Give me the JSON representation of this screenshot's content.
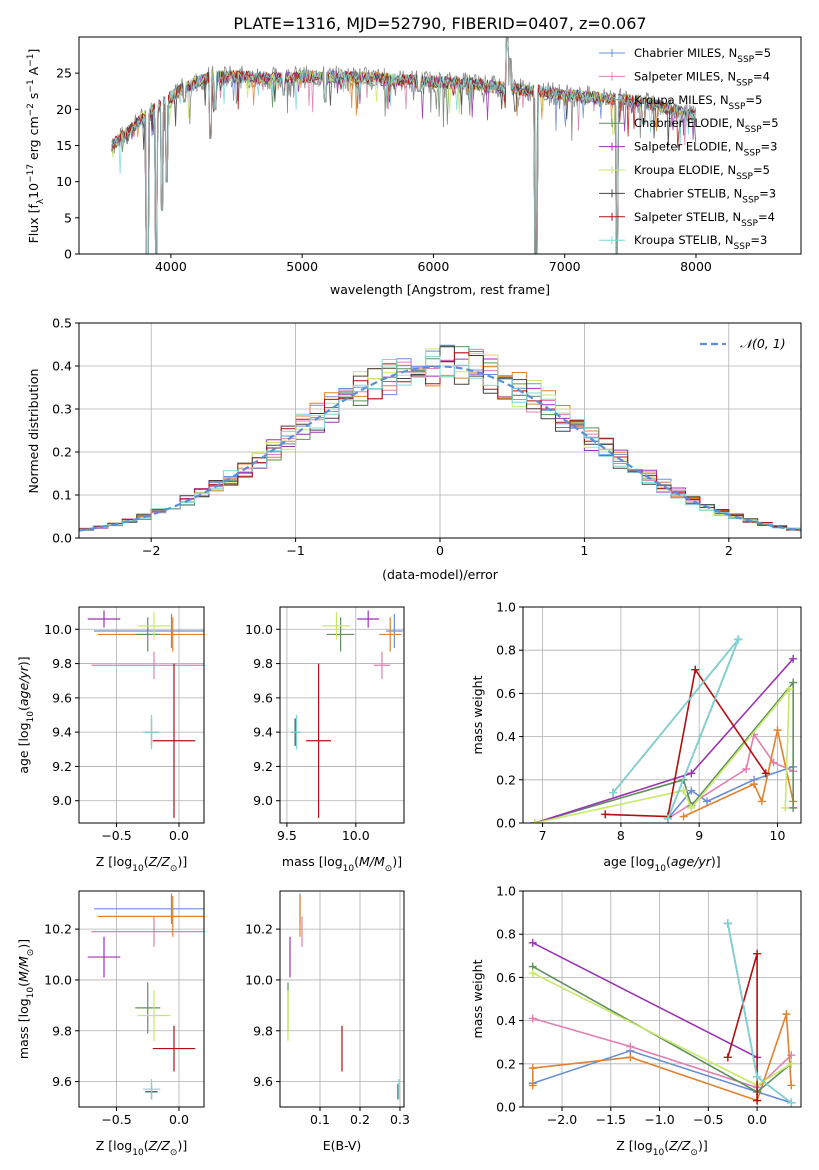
{
  "figure": {
    "title": "PLATE=1316, MJD=52790, FIBERID=0407, z=0.067"
  },
  "colors": {
    "Chabrier MILES": "#6b8fd6",
    "Salpeter MILES": "#e07fb0",
    "Kroupa MILES": "#e0822e",
    "Chabrier ELODIE": "#5f8f5f",
    "Salpeter ELODIE": "#9b33b3",
    "Kroupa ELODIE": "#c9e86a",
    "Chabrier STELIB": "#444444",
    "Salpeter STELIB": "#b01010",
    "Kroupa STELIB": "#7fd6d6",
    "data": "#888888",
    "gaussian": "#5b8fd6"
  },
  "chart_data": [
    {
      "id": "spectrum",
      "type": "line",
      "title": "PLATE=1316, MJD=52790, FIBERID=0407, z=0.067",
      "xlabel": "wavelength [Angstrom, rest frame]",
      "ylabel": "Flux [f_λ 10^-17 erg cm^-2 s^-1 A^-1]",
      "xlim": [
        3300,
        8800
      ],
      "ylim": [
        0,
        30
      ],
      "xticks": [
        4000,
        5000,
        6000,
        7000,
        8000
      ],
      "yticks": [
        0,
        5,
        10,
        15,
        20,
        25
      ],
      "grid": false,
      "legend_position": "top-right",
      "legend": [
        {
          "label": "Chabrier MILES, N",
          "sub": "SSP",
          "tail": "=5",
          "key": "Chabrier MILES"
        },
        {
          "label": "Salpeter MILES, N",
          "sub": "SSP",
          "tail": "=4",
          "key": "Salpeter MILES"
        },
        {
          "label": "Kroupa MILES, N",
          "sub": "SSP",
          "tail": "=5",
          "key": "Kroupa MILES"
        },
        {
          "label": "Chabrier ELODIE, N",
          "sub": "SSP",
          "tail": "=5",
          "key": "Chabrier ELODIE"
        },
        {
          "label": "Salpeter ELODIE, N",
          "sub": "SSP",
          "tail": "=3",
          "key": "Salpeter ELODIE"
        },
        {
          "label": "Kroupa ELODIE, N",
          "sub": "SSP",
          "tail": "=5",
          "key": "Kroupa ELODIE"
        },
        {
          "label": "Chabrier STELIB, N",
          "sub": "SSP",
          "tail": "=3",
          "key": "Chabrier STELIB"
        },
        {
          "label": "Salpeter STELIB, N",
          "sub": "SSP",
          "tail": "=4",
          "key": "Salpeter STELIB"
        },
        {
          "label": "Kroupa STELIB, N",
          "sub": "SSP",
          "tail": "=3",
          "key": "Kroupa STELIB"
        }
      ],
      "continuum": [
        [
          3550,
          15
        ],
        [
          3650,
          16.5
        ],
        [
          3800,
          19
        ],
        [
          3950,
          21
        ],
        [
          4100,
          23
        ],
        [
          4300,
          24.5
        ],
        [
          4500,
          24.5
        ],
        [
          4800,
          24.3
        ],
        [
          5000,
          24.5
        ],
        [
          5200,
          24.5
        ],
        [
          5500,
          24.3
        ],
        [
          5800,
          24
        ],
        [
          6000,
          23.8
        ],
        [
          6300,
          23.5
        ],
        [
          6500,
          23
        ],
        [
          6800,
          22.5
        ],
        [
          7000,
          22
        ],
        [
          7300,
          21.5
        ],
        [
          7600,
          21
        ],
        [
          7800,
          20
        ],
        [
          8000,
          19
        ]
      ],
      "features": [
        [
          3820,
          0
        ],
        [
          3890,
          0
        ],
        [
          3930,
          6
        ],
        [
          3968,
          10
        ],
        [
          4102,
          21
        ],
        [
          4300,
          16
        ],
        [
          4340,
          20
        ],
        [
          4861,
          22
        ],
        [
          5175,
          21
        ],
        [
          5890,
          22.5
        ],
        [
          6563,
          30
        ],
        [
          6583,
          27
        ],
        [
          6780,
          0
        ],
        [
          7400,
          0
        ],
        [
          7600,
          18
        ]
      ]
    },
    {
      "id": "residuals",
      "type": "histogram",
      "xlabel": "(data-model)/error",
      "ylabel": "Normed distribution",
      "xlim": [
        -2.5,
        2.5
      ],
      "ylim": [
        0,
        0.5
      ],
      "xticks": [
        -2,
        -1,
        0,
        1,
        2
      ],
      "yticks": [
        0.0,
        0.1,
        0.2,
        0.3,
        0.4,
        0.5
      ],
      "grid": true,
      "legend_position": "top-right",
      "reference_curve": "N(0,1)",
      "bin_width": 0.1
    },
    {
      "id": "age-vs-Z",
      "type": "scatter",
      "xlabel": "Z [log10(Z/Z⊙)]",
      "ylabel": "age [log10(age/yr)]",
      "xlim": [
        -0.8,
        0.2
      ],
      "ylim": [
        8.87,
        10.13
      ],
      "xticks": [
        -0.5,
        0.0
      ],
      "yticks": [
        9.0,
        9.2,
        9.4,
        9.6,
        9.8,
        10.0
      ],
      "grid": true,
      "points": [
        {
          "key": "Chabrier MILES",
          "x": -0.06,
          "y": 9.99,
          "xerr": 0.62,
          "yerr": 0.1
        },
        {
          "key": "Salpeter MILES",
          "x": -0.2,
          "y": 9.79,
          "xerr": 0.5,
          "yerr": 0.08
        },
        {
          "key": "Kroupa MILES",
          "x": -0.05,
          "y": 9.97,
          "xerr": 0.6,
          "yerr": 0.1
        },
        {
          "key": "Chabrier ELODIE",
          "x": -0.25,
          "y": 9.97,
          "xerr": 0.1,
          "yerr": 0.1
        },
        {
          "key": "Salpeter ELODIE",
          "x": -0.6,
          "y": 10.06,
          "xerr": 0.13,
          "yerr": 0.05
        },
        {
          "key": "Kroupa ELODIE",
          "x": -0.2,
          "y": 10.02,
          "xerr": 0.13,
          "yerr": 0.08
        },
        {
          "key": "Chabrier STELIB",
          "x": -0.22,
          "y": 9.4,
          "xerr": 0.05,
          "yerr": 0.08
        },
        {
          "key": "Salpeter STELIB",
          "x": -0.04,
          "y": 9.35,
          "xerr": 0.17,
          "yerr": 0.45
        },
        {
          "key": "Kroupa STELIB",
          "x": -0.22,
          "y": 9.4,
          "xerr": 0.07,
          "yerr": 0.1
        }
      ]
    },
    {
      "id": "age-vs-mass",
      "type": "scatter",
      "xlabel": "mass [log10(M/M⊙)]",
      "ylabel": "",
      "xlim": [
        9.45,
        10.35
      ],
      "ylim": [
        8.87,
        10.13
      ],
      "xticks": [
        9.5,
        10.0
      ],
      "yticks": [
        9.0,
        9.2,
        9.4,
        9.6,
        9.8,
        10.0
      ],
      "grid": true,
      "points": [
        {
          "key": "Chabrier MILES",
          "x": 10.28,
          "y": 9.99,
          "xerr": 0.06,
          "yerr": 0.1
        },
        {
          "key": "Salpeter MILES",
          "x": 10.19,
          "y": 9.79,
          "xerr": 0.06,
          "yerr": 0.08
        },
        {
          "key": "Kroupa MILES",
          "x": 10.25,
          "y": 9.97,
          "xerr": 0.08,
          "yerr": 0.1
        },
        {
          "key": "Chabrier ELODIE",
          "x": 9.89,
          "y": 9.97,
          "xerr": 0.1,
          "yerr": 0.1
        },
        {
          "key": "Salpeter ELODIE",
          "x": 10.09,
          "y": 10.06,
          "xerr": 0.08,
          "yerr": 0.05
        },
        {
          "key": "Kroupa ELODIE",
          "x": 9.86,
          "y": 10.02,
          "xerr": 0.1,
          "yerr": 0.08
        },
        {
          "key": "Chabrier STELIB",
          "x": 9.56,
          "y": 9.4,
          "xerr": 0.03,
          "yerr": 0.08
        },
        {
          "key": "Salpeter STELIB",
          "x": 9.73,
          "y": 9.35,
          "xerr": 0.09,
          "yerr": 0.45
        },
        {
          "key": "Kroupa STELIB",
          "x": 9.57,
          "y": 9.4,
          "xerr": 0.04,
          "yerr": 0.1
        }
      ]
    },
    {
      "id": "weight-vs-age",
      "type": "line",
      "xlabel": "age [log10(age/yr)]",
      "ylabel": "mass weight",
      "xlim": [
        6.75,
        10.3
      ],
      "ylim": [
        0,
        1.0
      ],
      "xticks": [
        7,
        8,
        9,
        10
      ],
      "yticks": [
        0.0,
        0.2,
        0.4,
        0.6,
        0.8,
        1.0
      ],
      "grid": true,
      "series": [
        {
          "key": "Chabrier MILES",
          "points": [
            [
              8.6,
              0.02
            ],
            [
              8.9,
              0.15
            ],
            [
              9.1,
              0.1
            ],
            [
              9.7,
              0.2
            ],
            [
              10.2,
              0.26
            ]
          ]
        },
        {
          "key": "Salpeter MILES",
          "points": [
            [
              8.6,
              0.02
            ],
            [
              9.6,
              0.25
            ],
            [
              9.7,
              0.41
            ],
            [
              9.95,
              0.28
            ],
            [
              10.2,
              0.24
            ]
          ]
        },
        {
          "key": "Kroupa MILES",
          "points": [
            [
              8.8,
              0.03
            ],
            [
              9.7,
              0.18
            ],
            [
              9.8,
              0.1
            ],
            [
              10.0,
              0.43
            ],
            [
              10.2,
              0.1
            ]
          ]
        },
        {
          "key": "Chabrier ELODIE",
          "points": [
            [
              6.9,
              0.0
            ],
            [
              8.8,
              0.2
            ],
            [
              8.9,
              0.08
            ],
            [
              10.2,
              0.65
            ],
            [
              10.2,
              0.07
            ]
          ]
        },
        {
          "key": "Salpeter ELODIE",
          "points": [
            [
              6.9,
              0.0
            ],
            [
              8.9,
              0.23
            ],
            [
              10.2,
              0.76
            ]
          ]
        },
        {
          "key": "Kroupa ELODIE",
          "points": [
            [
              6.9,
              0.0
            ],
            [
              8.8,
              0.15
            ],
            [
              8.9,
              0.07
            ],
            [
              10.15,
              0.62
            ],
            [
              10.1,
              0.07
            ]
          ]
        },
        {
          "key": "Chabrier STELIB",
          "points": [
            [
              8.6,
              0.02
            ],
            [
              9.5,
              0.85
            ],
            [
              7.9,
              0.14
            ]
          ]
        },
        {
          "key": "Salpeter STELIB",
          "points": [
            [
              7.8,
              0.04
            ],
            [
              8.6,
              0.03
            ],
            [
              8.95,
              0.71
            ],
            [
              9.85,
              0.23
            ]
          ]
        },
        {
          "key": "Kroupa STELIB",
          "points": [
            [
              8.6,
              0.02
            ],
            [
              9.5,
              0.85
            ],
            [
              7.9,
              0.14
            ]
          ]
        }
      ]
    },
    {
      "id": "mass-vs-Z",
      "type": "scatter",
      "xlabel": "Z [log10(Z/Z⊙)]",
      "ylabel": "mass [log10(M/M⊙)]",
      "xlim": [
        -0.8,
        0.2
      ],
      "ylim": [
        9.5,
        10.35
      ],
      "xticks": [
        -0.5,
        0.0
      ],
      "yticks": [
        9.6,
        9.8,
        10.0,
        10.2
      ],
      "grid": true,
      "points": [
        {
          "key": "Chabrier MILES",
          "x": -0.06,
          "y": 10.28,
          "xerr": 0.62,
          "yerr": 0.06
        },
        {
          "key": "Salpeter MILES",
          "x": -0.2,
          "y": 10.19,
          "xerr": 0.5,
          "yerr": 0.06
        },
        {
          "key": "Kroupa MILES",
          "x": -0.05,
          "y": 10.25,
          "xerr": 0.6,
          "yerr": 0.08
        },
        {
          "key": "Chabrier ELODIE",
          "x": -0.25,
          "y": 9.89,
          "xerr": 0.1,
          "yerr": 0.1
        },
        {
          "key": "Salpeter ELODIE",
          "x": -0.6,
          "y": 10.09,
          "xerr": 0.13,
          "yerr": 0.08
        },
        {
          "key": "Kroupa ELODIE",
          "x": -0.2,
          "y": 9.86,
          "xerr": 0.13,
          "yerr": 0.1
        },
        {
          "key": "Chabrier STELIB",
          "x": -0.22,
          "y": 9.56,
          "xerr": 0.05,
          "yerr": 0.03
        },
        {
          "key": "Salpeter STELIB",
          "x": -0.04,
          "y": 9.73,
          "xerr": 0.17,
          "yerr": 0.09
        },
        {
          "key": "Kroupa STELIB",
          "x": -0.22,
          "y": 9.57,
          "xerr": 0.07,
          "yerr": 0.04
        }
      ]
    },
    {
      "id": "mass-vs-EBV",
      "type": "scatter",
      "xlabel": "E(B-V)",
      "ylabel": "",
      "xlim": [
        0.0,
        0.31
      ],
      "ylim": [
        9.5,
        10.35
      ],
      "xticks": [
        0.1,
        0.2,
        0.3
      ],
      "yticks": [
        9.6,
        9.8,
        10.0,
        10.2
      ],
      "grid": true,
      "points": [
        {
          "key": "Chabrier MILES",
          "x": 0.05,
          "y": 10.28,
          "xerr": 0.0,
          "yerr": 0.06
        },
        {
          "key": "Salpeter MILES",
          "x": 0.055,
          "y": 10.19,
          "xerr": 0.0,
          "yerr": 0.06
        },
        {
          "key": "Kroupa MILES",
          "x": 0.05,
          "y": 10.25,
          "xerr": 0.0,
          "yerr": 0.08
        },
        {
          "key": "Chabrier ELODIE",
          "x": 0.02,
          "y": 9.89,
          "xerr": 0.0,
          "yerr": 0.1
        },
        {
          "key": "Salpeter ELODIE",
          "x": 0.025,
          "y": 10.09,
          "xerr": 0.0,
          "yerr": 0.08
        },
        {
          "key": "Kroupa ELODIE",
          "x": 0.02,
          "y": 9.86,
          "xerr": 0.0,
          "yerr": 0.1
        },
        {
          "key": "Chabrier STELIB",
          "x": 0.295,
          "y": 9.56,
          "xerr": 0.0,
          "yerr": 0.03
        },
        {
          "key": "Salpeter STELIB",
          "x": 0.155,
          "y": 9.73,
          "xerr": 0.0,
          "yerr": 0.09
        },
        {
          "key": "Kroupa STELIB",
          "x": 0.297,
          "y": 9.57,
          "xerr": 0.0,
          "yerr": 0.04
        }
      ]
    },
    {
      "id": "weight-vs-Z",
      "type": "line",
      "xlabel": "Z [log10(Z/Z⊙)]",
      "ylabel": "mass weight",
      "xlim": [
        -2.4,
        0.45
      ],
      "ylim": [
        0,
        1.0
      ],
      "xticks": [
        -2.0,
        -1.5,
        -1.0,
        -0.5,
        0.0
      ],
      "yticks": [
        0.0,
        0.2,
        0.4,
        0.6,
        0.8,
        1.0
      ],
      "grid": true,
      "series": [
        {
          "key": "Chabrier MILES",
          "points": [
            [
              -2.3,
              0.11
            ],
            [
              -1.3,
              0.26
            ],
            [
              0.0,
              0.07
            ],
            [
              0.35,
              0.02
            ]
          ]
        },
        {
          "key": "Salpeter MILES",
          "points": [
            [
              -2.3,
              0.41
            ],
            [
              -1.3,
              0.28
            ],
            [
              0.0,
              0.09
            ],
            [
              0.35,
              0.24
            ]
          ]
        },
        {
          "key": "Kroupa MILES",
          "points": [
            [
              -2.3,
              0.1
            ],
            [
              -2.3,
              0.18
            ],
            [
              -1.3,
              0.23
            ],
            [
              0.0,
              0.03
            ],
            [
              0.3,
              0.43
            ],
            [
              0.35,
              0.1
            ]
          ]
        },
        {
          "key": "Chabrier ELODIE",
          "points": [
            [
              -2.3,
              0.65
            ],
            [
              0.0,
              0.07
            ],
            [
              0.35,
              0.2
            ]
          ]
        },
        {
          "key": "Salpeter ELODIE",
          "points": [
            [
              -2.3,
              0.76
            ],
            [
              0.0,
              0.23
            ]
          ]
        },
        {
          "key": "Kroupa ELODIE",
          "points": [
            [
              -2.3,
              0.62
            ],
            [
              0.0,
              0.1
            ],
            [
              0.35,
              0.2
            ]
          ]
        },
        {
          "key": "Chabrier STELIB",
          "points": [
            [
              -0.3,
              0.85
            ],
            [
              0.0,
              0.14
            ],
            [
              0.35,
              0.02
            ]
          ]
        },
        {
          "key": "Salpeter STELIB",
          "points": [
            [
              -0.3,
              0.23
            ],
            [
              0.0,
              0.71
            ],
            [
              0.0,
              0.03
            ]
          ]
        },
        {
          "key": "Kroupa STELIB",
          "points": [
            [
              -0.3,
              0.85
            ],
            [
              0.0,
              0.14
            ],
            [
              0.35,
              0.02
            ]
          ]
        }
      ]
    }
  ]
}
